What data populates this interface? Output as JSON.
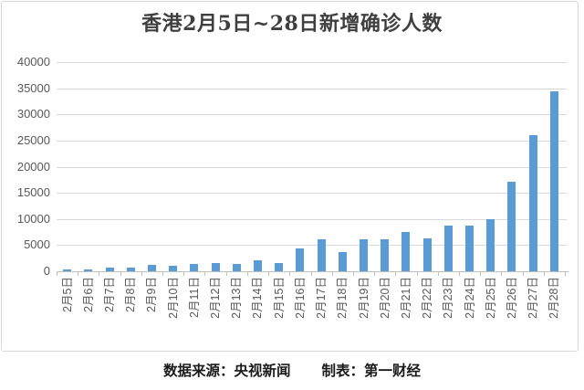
{
  "chart_data": {
    "type": "bar",
    "title": "香港2月5日~28日新增确诊人数",
    "categories": [
      "2月5日",
      "2月6日",
      "2月7日",
      "2月8日",
      "2月9日",
      "2月10日",
      "2月11日",
      "2月12日",
      "2月13日",
      "2月14日",
      "2月15日",
      "2月16日",
      "2月17日",
      "2月18日",
      "2月19日",
      "2月20日",
      "2月21日",
      "2月22日",
      "2月23日",
      "2月24日",
      "2月25日",
      "2月26日",
      "2月27日",
      "2月28日"
    ],
    "values": [
      351,
      342,
      614,
      625,
      1161,
      986,
      1325,
      1514,
      1347,
      2071,
      1619,
      4285,
      6116,
      3629,
      6063,
      6067,
      7533,
      6211,
      8674,
      8798,
      10010,
      17063,
      26026,
      34466
    ],
    "xlabel": "",
    "ylabel": "",
    "ylim": [
      0,
      40000
    ],
    "yticks": [
      0,
      5000,
      10000,
      15000,
      20000,
      25000,
      30000,
      35000,
      40000
    ],
    "grid": true,
    "legend_position": "none",
    "bar_color": "#5b9bd5"
  },
  "caption": {
    "source": "数据来源：央视新闻",
    "maker": "制表：第一财经"
  },
  "colors": {
    "bar": "#5b9bd5",
    "gridline": "#d9d9d9",
    "axis": "#bfbfbf",
    "tick_label": "#595959",
    "title": "#3f3f3f",
    "frame_border": "#d9d9d9"
  }
}
